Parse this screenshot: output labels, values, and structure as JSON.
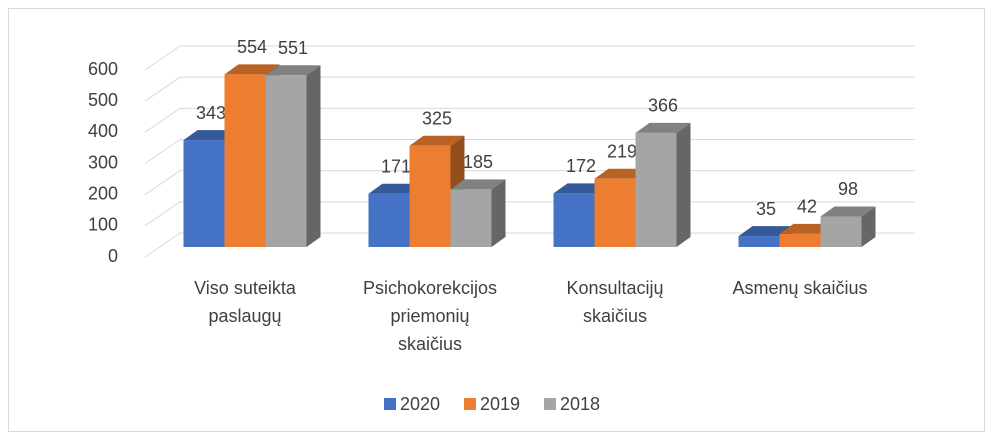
{
  "chart_data": {
    "type": "bar3d",
    "categories": [
      "Viso suteikta paslaugų",
      "Psichokorekcijos priemonių skaičius",
      "Konsultacijų skaičius",
      "Asmenų skaičius"
    ],
    "series": [
      {
        "name": "2020",
        "color": "#4472c4",
        "values": [
          343,
          171,
          172,
          35
        ]
      },
      {
        "name": "2019",
        "color": "#ed7d31",
        "values": [
          554,
          325,
          219,
          42
        ]
      },
      {
        "name": "2018",
        "color": "#a5a5a5",
        "values": [
          551,
          185,
          366,
          98
        ]
      }
    ],
    "ylim": [
      0,
      600
    ],
    "yticks": [
      0,
      100,
      200,
      300,
      400,
      500,
      600
    ],
    "grid": true,
    "legend": "bottom"
  }
}
